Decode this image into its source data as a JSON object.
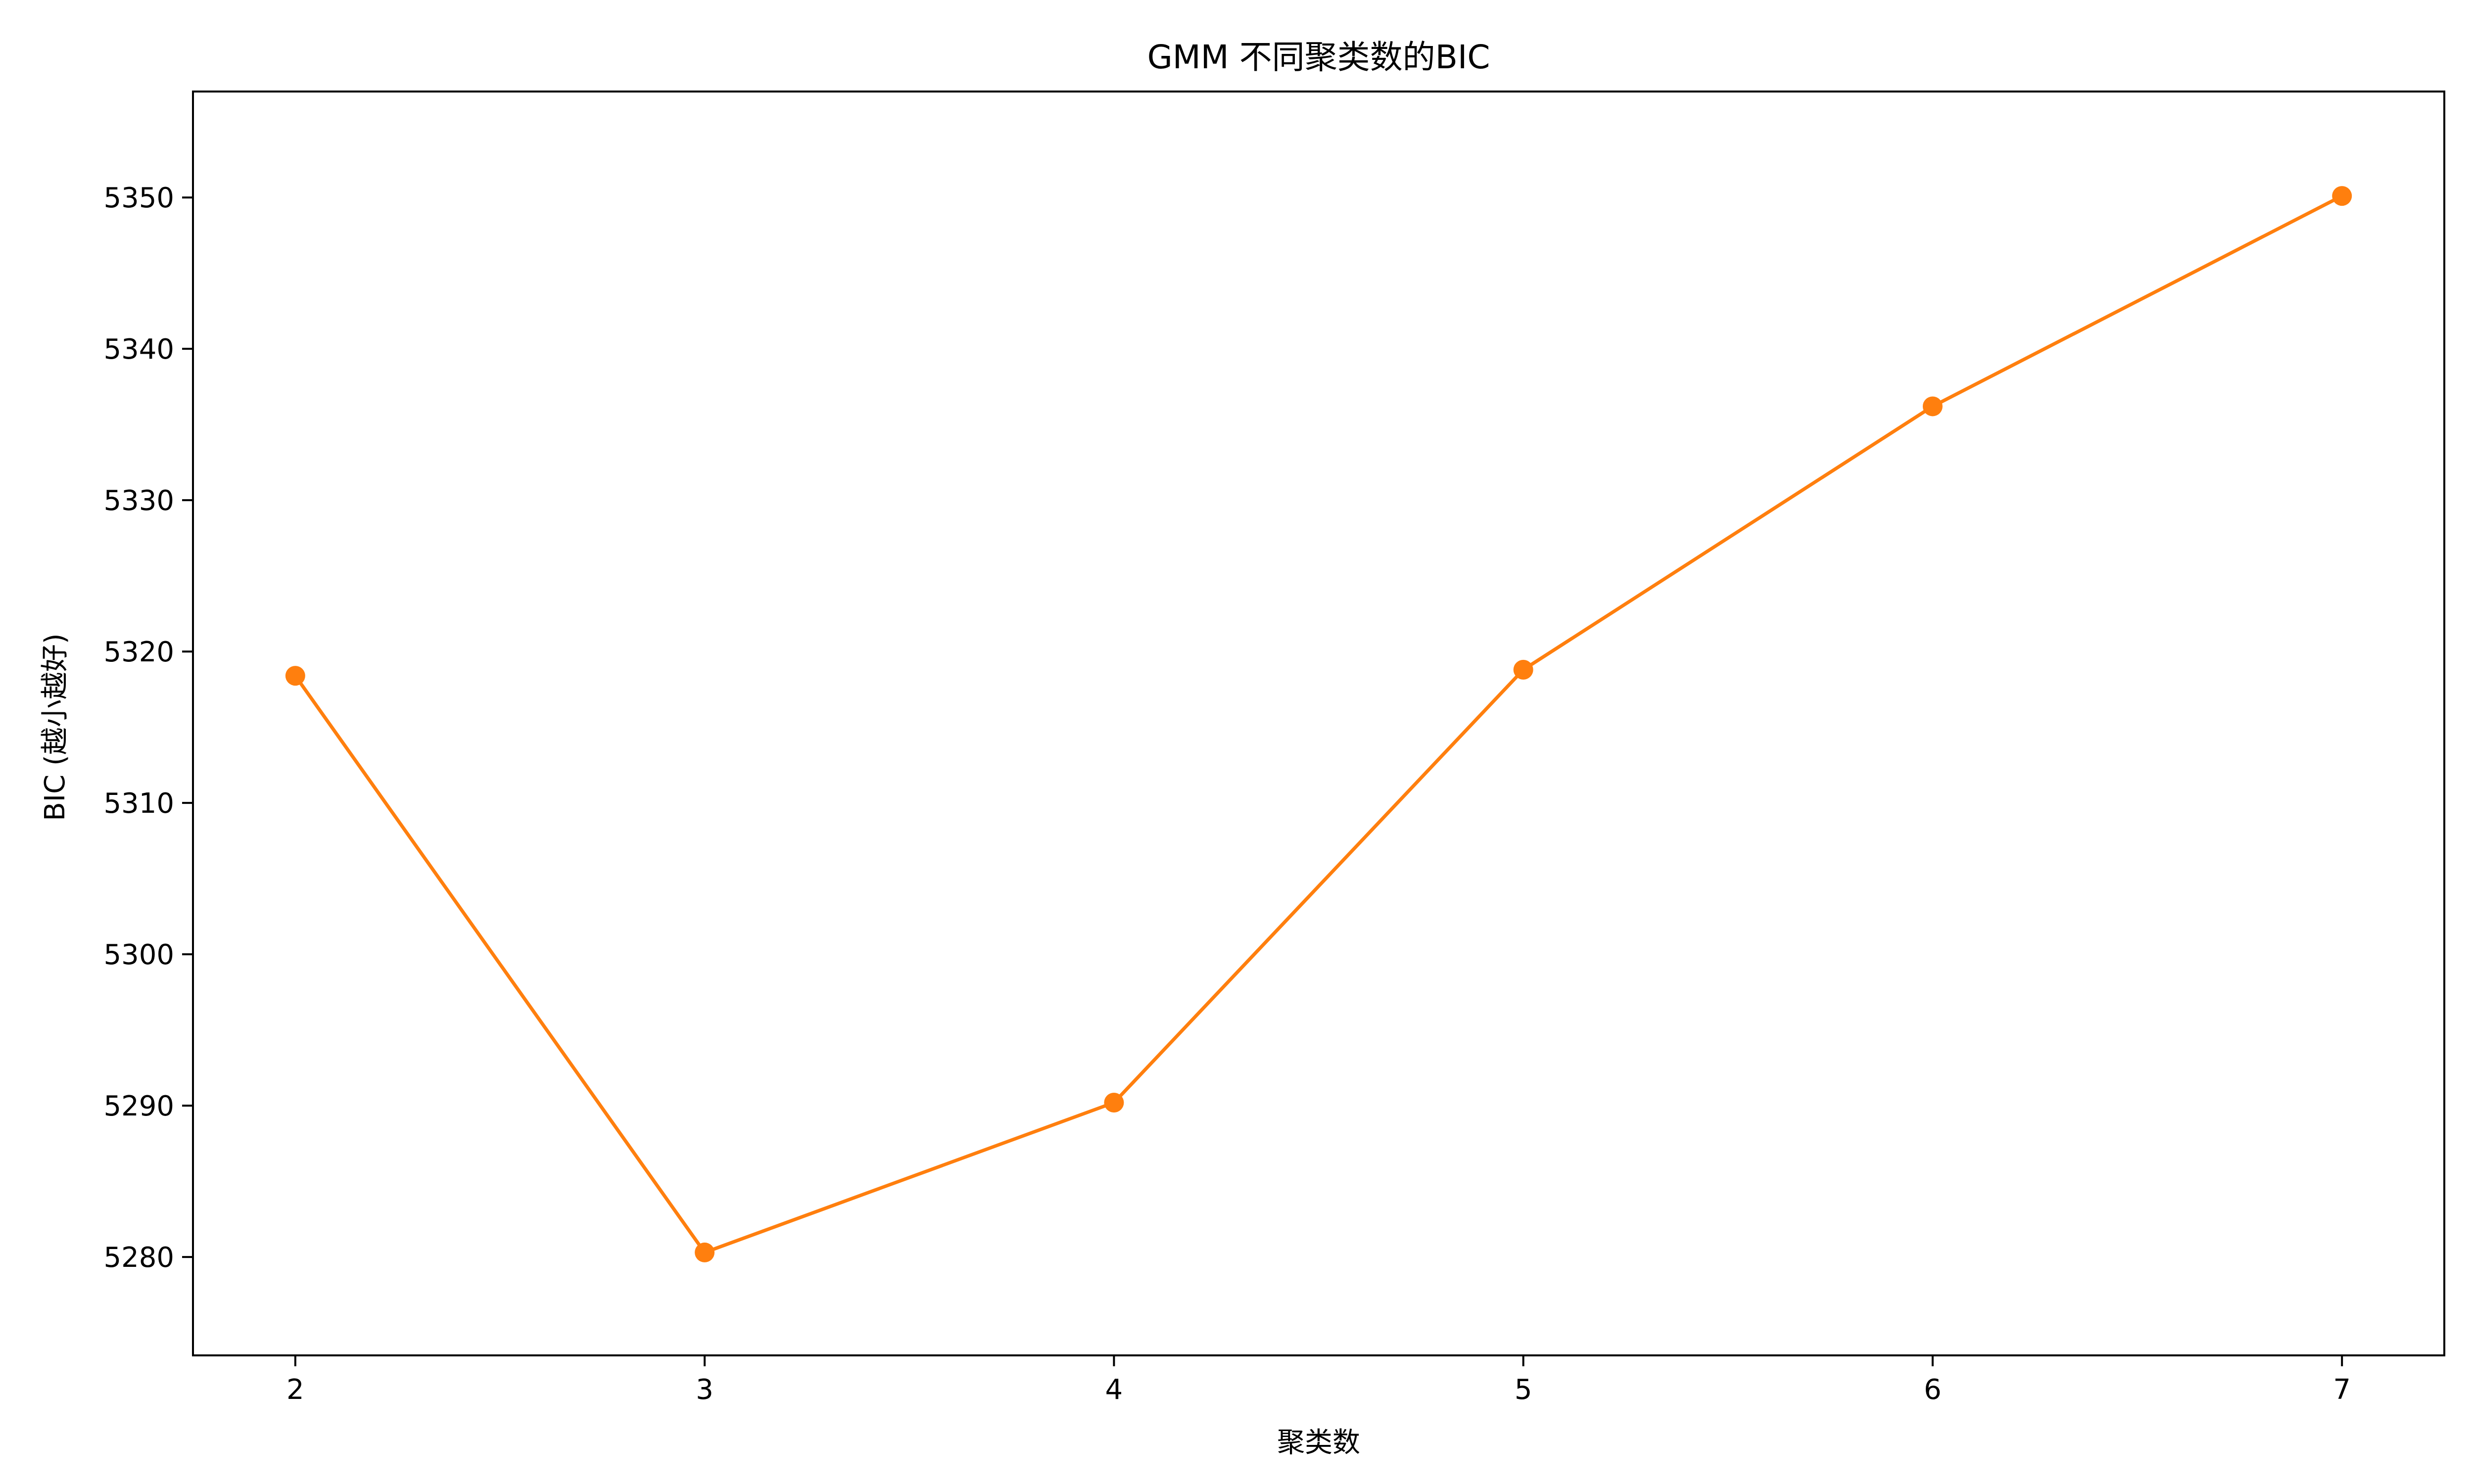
{
  "chart_data": {
    "type": "line",
    "title": "GMM 不同聚类数的BIC",
    "xlabel": "聚类数",
    "ylabel": "BIC (越小越好)",
    "x": [
      2,
      3,
      4,
      5,
      6,
      7
    ],
    "xlim": [
      1.75,
      7.25
    ],
    "ylim": [
      5273.5,
      5357
    ],
    "xticks": [
      "2",
      "3",
      "4",
      "5",
      "6",
      "7"
    ],
    "yticks": [
      "5280",
      "5290",
      "5300",
      "5310",
      "5320",
      "5330",
      "5340",
      "5350"
    ],
    "grid": false,
    "series": [
      {
        "values": [
          5318.4,
          5280.3,
          5290.2,
          5318.8,
          5336.2,
          5350.1
        ],
        "color": "#ff7f0e",
        "marker": "circle"
      }
    ]
  }
}
